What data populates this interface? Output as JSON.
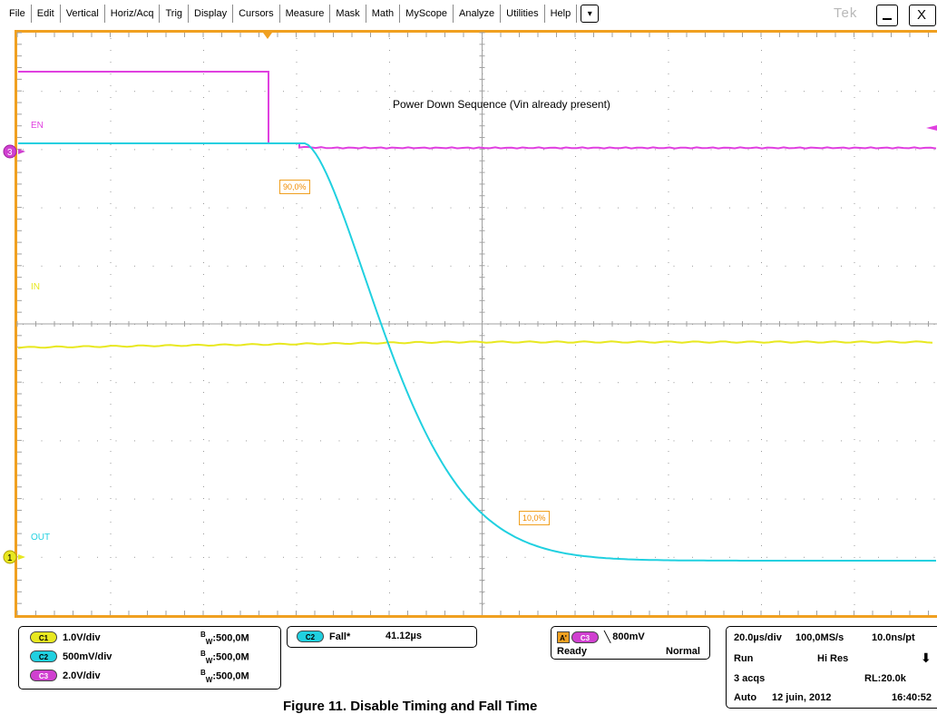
{
  "menu": {
    "items": [
      "File",
      "Edit",
      "Vertical",
      "Horiz/Acq",
      "Trig",
      "Display",
      "Cursors",
      "Measure",
      "Mask",
      "Math",
      "MyScope",
      "Analyze",
      "Utilities",
      "Help"
    ],
    "dropdown_icon": "▾",
    "brand": "Tek",
    "minimize_label": "—",
    "close_label": "X"
  },
  "screen": {
    "title": "Power Down Sequence (Vin already present)",
    "traces": {
      "en_label": "EN",
      "in_label": "IN",
      "out_label": "OUT"
    },
    "markers": {
      "ch3": "3",
      "ch1": "1"
    },
    "ref_high": "90,0%",
    "ref_low": "10,0%",
    "colors": {
      "en": "#e040e0",
      "in": "#e8e820",
      "out": "#20d0e0",
      "frame": "#f0a020"
    }
  },
  "vertical": {
    "ch1": {
      "badge": "C1",
      "scale": "1.0V/div",
      "bw": "500,0M"
    },
    "ch2": {
      "badge": "C2",
      "scale": "500mV/div",
      "bw": "500,0M"
    },
    "ch3": {
      "badge": "C3",
      "scale": "2.0V/div",
      "bw": "500,0M"
    },
    "bw_prefix": "B",
    "bw_sub": "W",
    "bw_sep": ":"
  },
  "measurement": {
    "badge": "C2",
    "name": "Fall*",
    "value": "41.12µs"
  },
  "trigger": {
    "source_badge": "A'",
    "channel_badge": "C3",
    "slope_icon": "falling-edge",
    "slope_glyph": "╲",
    "level": "800mV",
    "state": "Ready",
    "mode": "Normal"
  },
  "acquisition": {
    "timebase": "20.0µs/div",
    "sample_rate": "100,0MS/s",
    "resolution": "10.0ns/pt",
    "run_state": "Run",
    "acq_mode": "Hi Res",
    "acqs": "3 acqs",
    "record_length": "RL:20.0k",
    "trigger_mode": "Auto",
    "date": "12 juin, 2012",
    "time": "16:40:52",
    "arrow_glyph": "⬇"
  },
  "caption": "Figure 11. Disable Timing and Fall Time"
}
